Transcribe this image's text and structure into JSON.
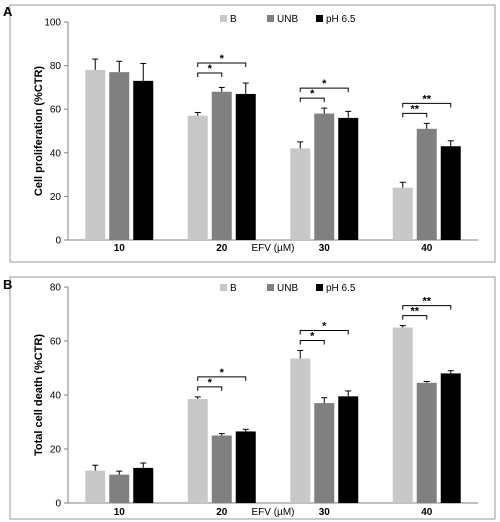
{
  "colors": {
    "B": "#c8c8c8",
    "UNB": "#808080",
    "pH 6.5": "#000000"
  },
  "chart_data": [
    {
      "panel": "A",
      "type": "bar",
      "xlabel": "EFV (µM)",
      "ylabel": "Cell proliferation (%CTR)",
      "ylim": [
        0,
        100
      ],
      "yticks": [
        0,
        20,
        40,
        60,
        80,
        100
      ],
      "categories": [
        "10",
        "20",
        "30",
        "40"
      ],
      "legend": "top-right",
      "series": [
        {
          "name": "B",
          "values": [
            78,
            57,
            42,
            24
          ],
          "errors": [
            5,
            1.5,
            3,
            2.5
          ]
        },
        {
          "name": "UNB",
          "values": [
            77,
            68,
            58,
            51
          ],
          "errors": [
            5,
            2,
            2.5,
            2.5
          ]
        },
        {
          "name": "pH 6.5",
          "values": [
            73,
            67,
            56,
            43
          ],
          "errors": [
            8,
            5,
            3,
            2.5
          ]
        }
      ],
      "annotations": [
        {
          "category": "20",
          "from": "B",
          "to": "UNB",
          "label": "*"
        },
        {
          "category": "20",
          "from": "B",
          "to": "pH 6.5",
          "label": "*"
        },
        {
          "category": "30",
          "from": "B",
          "to": "UNB",
          "label": "*"
        },
        {
          "category": "30",
          "from": "B",
          "to": "pH 6.5",
          "label": "*"
        },
        {
          "category": "40",
          "from": "B",
          "to": "UNB",
          "label": "**"
        },
        {
          "category": "40",
          "from": "B",
          "to": "pH 6.5",
          "label": "**"
        }
      ]
    },
    {
      "panel": "B",
      "type": "bar",
      "xlabel": "EFV (µM)",
      "ylabel": "Total cell death (%CTR)",
      "ylim": [
        0,
        80
      ],
      "yticks": [
        0,
        20,
        40,
        60,
        80
      ],
      "categories": [
        "10",
        "20",
        "30",
        "40"
      ],
      "legend": "top-right",
      "series": [
        {
          "name": "B",
          "values": [
            12,
            38.5,
            53.5,
            65
          ],
          "errors": [
            2,
            0.8,
            3,
            0.7
          ]
        },
        {
          "name": "UNB",
          "values": [
            10.5,
            25,
            37,
            44.5
          ],
          "errors": [
            1.3,
            0.7,
            2,
            0.5
          ]
        },
        {
          "name": "pH 6.5",
          "values": [
            13,
            26.5,
            39.5,
            48
          ],
          "errors": [
            1.8,
            0.8,
            2,
            1
          ]
        }
      ],
      "annotations": [
        {
          "category": "20",
          "from": "B",
          "to": "UNB",
          "label": "*"
        },
        {
          "category": "20",
          "from": "B",
          "to": "pH 6.5",
          "label": "*"
        },
        {
          "category": "30",
          "from": "B",
          "to": "UNB",
          "label": "*"
        },
        {
          "category": "30",
          "from": "B",
          "to": "pH 6.5",
          "label": "*"
        },
        {
          "category": "40",
          "from": "B",
          "to": "UNB",
          "label": "**"
        },
        {
          "category": "40",
          "from": "B",
          "to": "pH 6.5",
          "label": "**"
        }
      ]
    }
  ]
}
